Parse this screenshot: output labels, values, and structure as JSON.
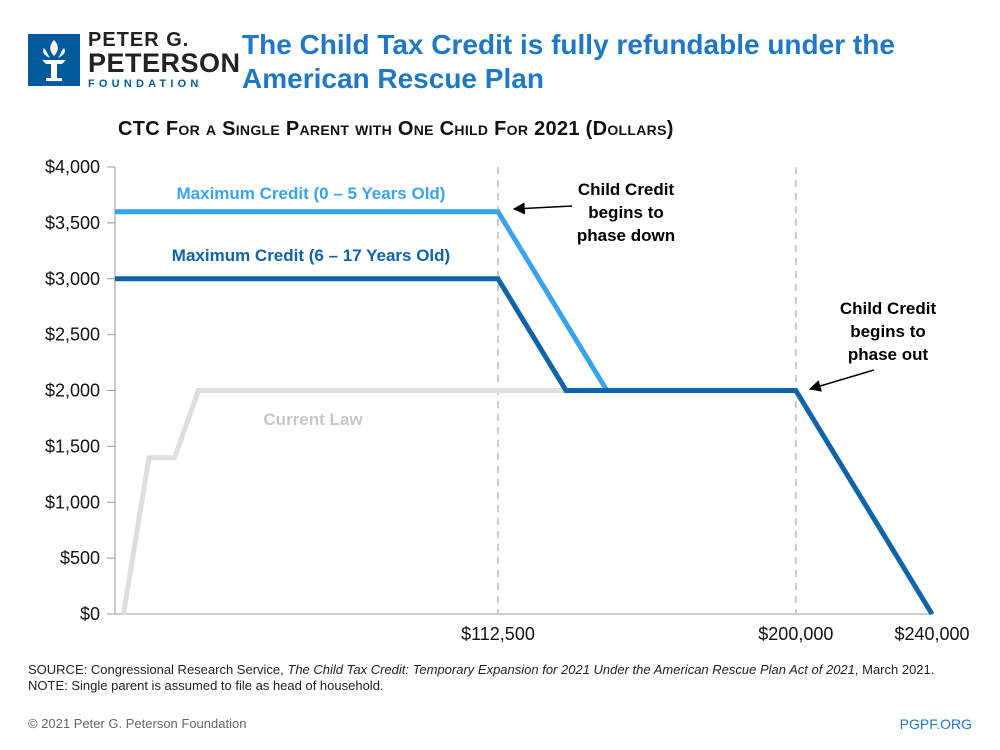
{
  "logo": {
    "line1": "PETER G.",
    "line2": "PETERSON",
    "line3": "FOUNDATION"
  },
  "headline": "The Child Tax Credit is fully refundable under the American Rescue Plan",
  "subtitle": "CTC For a Single Parent with One Child For 2021 (Dollars)",
  "chart_data": {
    "type": "line",
    "title": "CTC For a Single Parent with One Child For 2021 (Dollars)",
    "xlabel": "",
    "ylabel": "",
    "xlim": [
      0,
      240000
    ],
    "ylim": [
      0,
      4000
    ],
    "y_ticks": [
      0,
      500,
      1000,
      1500,
      2000,
      2500,
      3000,
      3500,
      4000
    ],
    "y_tick_labels": [
      "$0",
      "$500",
      "$1,000",
      "$1,500",
      "$2,000",
      "$2,500",
      "$3,000",
      "$3,500",
      "$4,000"
    ],
    "x_ticks": [
      112500,
      200000,
      240000
    ],
    "x_tick_labels": [
      "$112,500",
      "$200,000",
      "$240,000"
    ],
    "reference_lines_x": [
      112500,
      200000
    ],
    "grid": false,
    "series": [
      {
        "name": "Current Law",
        "color": "#dedede",
        "x": [
          2500,
          10000,
          12000,
          17500,
          24500,
          112500,
          200000
        ],
        "y": [
          0,
          1400,
          1400,
          1400,
          2000,
          2000,
          2000
        ]
      },
      {
        "name": "Maximum Credit (0 – 5 Years Old)",
        "color": "#3aa3ef",
        "x": [
          0,
          112500,
          144500
        ],
        "y": [
          3600,
          3600,
          2000
        ]
      },
      {
        "name": "Maximum Credit (6 – 17 Years Old)",
        "color": "#0f63a8",
        "x": [
          0,
          112500,
          132500,
          200000,
          240000
        ],
        "y": [
          3000,
          3000,
          2000,
          2000,
          0
        ]
      }
    ],
    "annotations": [
      {
        "id": "phase-down",
        "text": [
          "Child Credit",
          "begins to",
          "phase down"
        ]
      },
      {
        "id": "phase-out",
        "text": [
          "Child Credit",
          "begins to",
          "phase out"
        ]
      }
    ]
  },
  "source": {
    "prefix": "SOURCE: Congressional Research Service, ",
    "title": "The Child Tax Credit: Temporary Expansion for 2021 Under the American Rescue Plan Act of 2021",
    "suffix": ", March 2021.",
    "note": "NOTE: Single parent is assumed to file as head of household."
  },
  "footer": {
    "copyright": "© 2021 Peter G. Peterson Foundation",
    "site": "PGPF.ORG"
  },
  "colors": {
    "brand_blue": "#1f78c6",
    "logo_blue": "#005a9c"
  }
}
